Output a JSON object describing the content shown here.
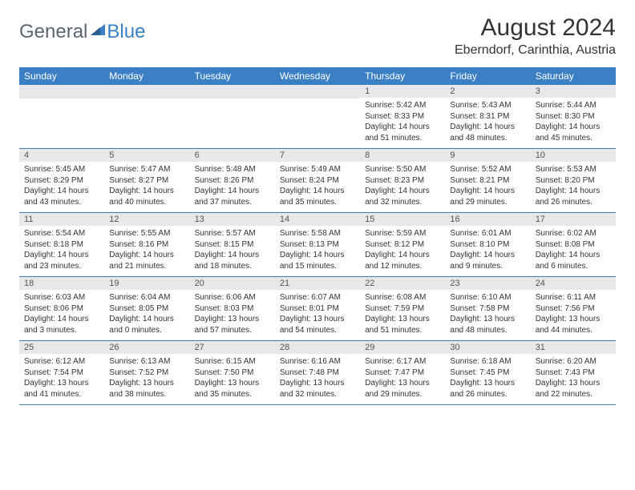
{
  "logo": {
    "text_gray": "General",
    "text_blue": "Blue"
  },
  "title": "August 2024",
  "location": "Eberndorf, Carinthia, Austria",
  "colors": {
    "header_bg": "#3b7fc4",
    "header_text": "#ffffff",
    "daynum_bg": "#e8e8e8",
    "body_text": "#333333",
    "border": "#3b7fc4"
  },
  "columns": [
    "Sunday",
    "Monday",
    "Tuesday",
    "Wednesday",
    "Thursday",
    "Friday",
    "Saturday"
  ],
  "weeks": [
    [
      null,
      null,
      null,
      null,
      {
        "n": "1",
        "sr": "5:42 AM",
        "ss": "8:33 PM",
        "dl": "14 hours and 51 minutes."
      },
      {
        "n": "2",
        "sr": "5:43 AM",
        "ss": "8:31 PM",
        "dl": "14 hours and 48 minutes."
      },
      {
        "n": "3",
        "sr": "5:44 AM",
        "ss": "8:30 PM",
        "dl": "14 hours and 45 minutes."
      }
    ],
    [
      {
        "n": "4",
        "sr": "5:45 AM",
        "ss": "8:29 PM",
        "dl": "14 hours and 43 minutes."
      },
      {
        "n": "5",
        "sr": "5:47 AM",
        "ss": "8:27 PM",
        "dl": "14 hours and 40 minutes."
      },
      {
        "n": "6",
        "sr": "5:48 AM",
        "ss": "8:26 PM",
        "dl": "14 hours and 37 minutes."
      },
      {
        "n": "7",
        "sr": "5:49 AM",
        "ss": "8:24 PM",
        "dl": "14 hours and 35 minutes."
      },
      {
        "n": "8",
        "sr": "5:50 AM",
        "ss": "8:23 PM",
        "dl": "14 hours and 32 minutes."
      },
      {
        "n": "9",
        "sr": "5:52 AM",
        "ss": "8:21 PM",
        "dl": "14 hours and 29 minutes."
      },
      {
        "n": "10",
        "sr": "5:53 AM",
        "ss": "8:20 PM",
        "dl": "14 hours and 26 minutes."
      }
    ],
    [
      {
        "n": "11",
        "sr": "5:54 AM",
        "ss": "8:18 PM",
        "dl": "14 hours and 23 minutes."
      },
      {
        "n": "12",
        "sr": "5:55 AM",
        "ss": "8:16 PM",
        "dl": "14 hours and 21 minutes."
      },
      {
        "n": "13",
        "sr": "5:57 AM",
        "ss": "8:15 PM",
        "dl": "14 hours and 18 minutes."
      },
      {
        "n": "14",
        "sr": "5:58 AM",
        "ss": "8:13 PM",
        "dl": "14 hours and 15 minutes."
      },
      {
        "n": "15",
        "sr": "5:59 AM",
        "ss": "8:12 PM",
        "dl": "14 hours and 12 minutes."
      },
      {
        "n": "16",
        "sr": "6:01 AM",
        "ss": "8:10 PM",
        "dl": "14 hours and 9 minutes."
      },
      {
        "n": "17",
        "sr": "6:02 AM",
        "ss": "8:08 PM",
        "dl": "14 hours and 6 minutes."
      }
    ],
    [
      {
        "n": "18",
        "sr": "6:03 AM",
        "ss": "8:06 PM",
        "dl": "14 hours and 3 minutes."
      },
      {
        "n": "19",
        "sr": "6:04 AM",
        "ss": "8:05 PM",
        "dl": "14 hours and 0 minutes."
      },
      {
        "n": "20",
        "sr": "6:06 AM",
        "ss": "8:03 PM",
        "dl": "13 hours and 57 minutes."
      },
      {
        "n": "21",
        "sr": "6:07 AM",
        "ss": "8:01 PM",
        "dl": "13 hours and 54 minutes."
      },
      {
        "n": "22",
        "sr": "6:08 AM",
        "ss": "7:59 PM",
        "dl": "13 hours and 51 minutes."
      },
      {
        "n": "23",
        "sr": "6:10 AM",
        "ss": "7:58 PM",
        "dl": "13 hours and 48 minutes."
      },
      {
        "n": "24",
        "sr": "6:11 AM",
        "ss": "7:56 PM",
        "dl": "13 hours and 44 minutes."
      }
    ],
    [
      {
        "n": "25",
        "sr": "6:12 AM",
        "ss": "7:54 PM",
        "dl": "13 hours and 41 minutes."
      },
      {
        "n": "26",
        "sr": "6:13 AM",
        "ss": "7:52 PM",
        "dl": "13 hours and 38 minutes."
      },
      {
        "n": "27",
        "sr": "6:15 AM",
        "ss": "7:50 PM",
        "dl": "13 hours and 35 minutes."
      },
      {
        "n": "28",
        "sr": "6:16 AM",
        "ss": "7:48 PM",
        "dl": "13 hours and 32 minutes."
      },
      {
        "n": "29",
        "sr": "6:17 AM",
        "ss": "7:47 PM",
        "dl": "13 hours and 29 minutes."
      },
      {
        "n": "30",
        "sr": "6:18 AM",
        "ss": "7:45 PM",
        "dl": "13 hours and 26 minutes."
      },
      {
        "n": "31",
        "sr": "6:20 AM",
        "ss": "7:43 PM",
        "dl": "13 hours and 22 minutes."
      }
    ]
  ],
  "labels": {
    "sunrise": "Sunrise:",
    "sunset": "Sunset:",
    "daylight": "Daylight:"
  }
}
